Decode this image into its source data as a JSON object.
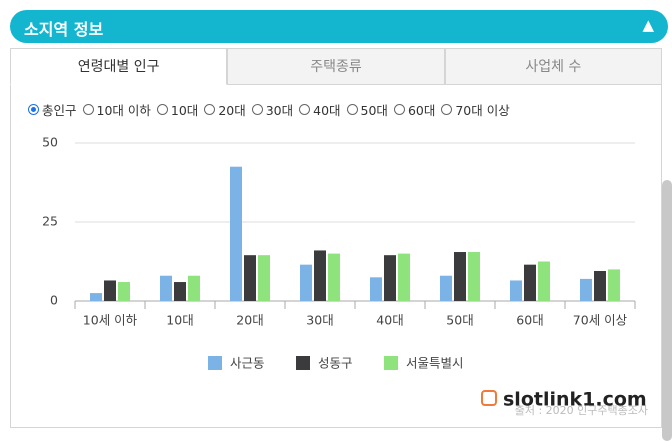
{
  "header": {
    "title": "소지역 정보"
  },
  "tabs": {
    "items": [
      "연령대별 인구",
      "주택종류",
      "사업체 수"
    ],
    "active": 0
  },
  "options": {
    "items": [
      "총인구",
      "10대 이하",
      "10대",
      "20대",
      "30대",
      "40대",
      "50대",
      "60대",
      "70대 이상"
    ],
    "selected": 0
  },
  "chart_data": {
    "type": "bar",
    "categories": [
      "10세 이하",
      "10대",
      "20대",
      "30대",
      "40대",
      "50대",
      "60대",
      "70세 이상"
    ],
    "series": [
      {
        "name": "사근동",
        "color": "#7cb3e6",
        "values": [
          2.5,
          8,
          42.5,
          11.5,
          7.5,
          8,
          6.5,
          7
        ]
      },
      {
        "name": "성동구",
        "color": "#3b3b3e",
        "values": [
          6.5,
          6,
          14.5,
          16,
          14.5,
          15.5,
          11.5,
          9.5
        ]
      },
      {
        "name": "서울특별시",
        "color": "#8ee37d",
        "values": [
          6,
          8,
          14.5,
          15,
          15,
          15.5,
          12.5,
          10
        ]
      }
    ],
    "ylim": [
      0,
      50
    ],
    "yticks": [
      0,
      25,
      50
    ],
    "grid": true,
    "source": "출처 : 2020 인구주택총조사"
  },
  "watermark": "slotlink1.com"
}
